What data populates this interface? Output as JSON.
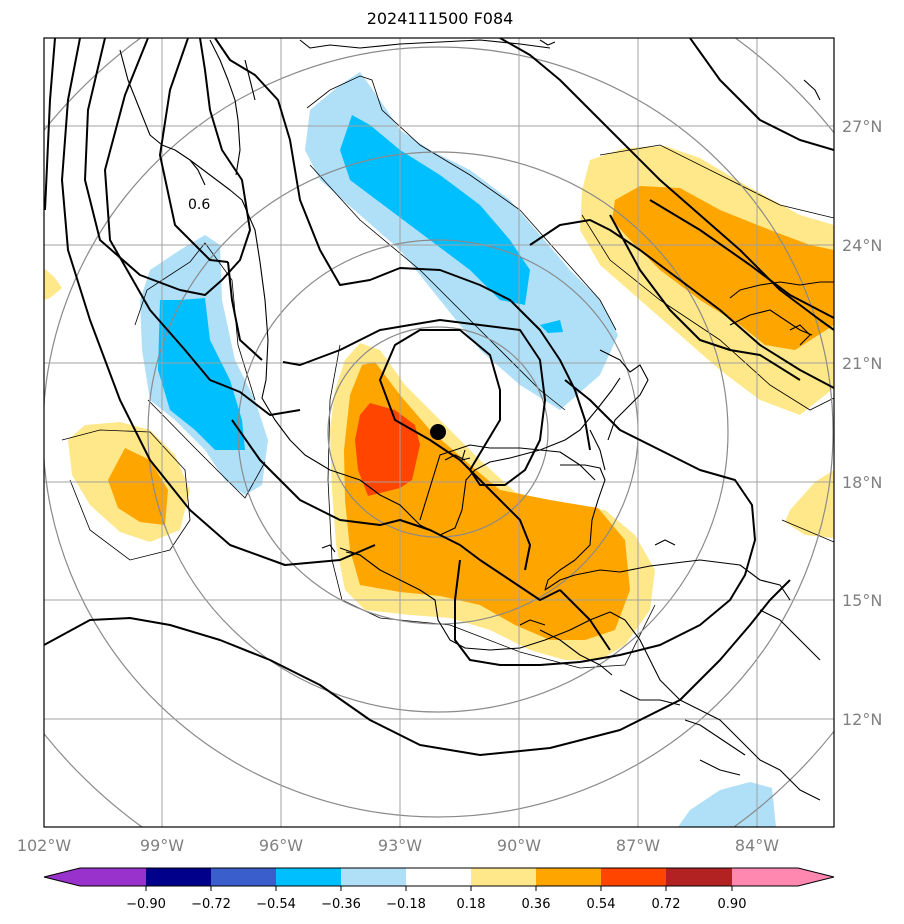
{
  "title": "2024111500 F084",
  "map": {
    "lon_labels": [
      "102°W",
      "99°W",
      "96°W",
      "93°W",
      "90°W",
      "87°W",
      "84°W"
    ],
    "lat_labels": [
      "27°N",
      "24°N",
      "21°N",
      "18°N",
      "15°N",
      "12°N"
    ],
    "contour_label": "0.6",
    "marker": {
      "lon": "92°W",
      "lat": "19.3°N"
    }
  },
  "colorbar": {
    "ticks": [
      "−0.90",
      "−0.72",
      "−0.54",
      "−0.36",
      "−0.18",
      "0.18",
      "0.36",
      "0.54",
      "0.72",
      "0.90"
    ],
    "colors": [
      "#9932cc",
      "#00008b",
      "#3a5fcd",
      "#00bfff",
      "#b0e0f8",
      "#ffffff",
      "#ffe88a",
      "#ffa500",
      "#ff4500",
      "#b22222",
      "#ff88b0"
    ]
  }
}
